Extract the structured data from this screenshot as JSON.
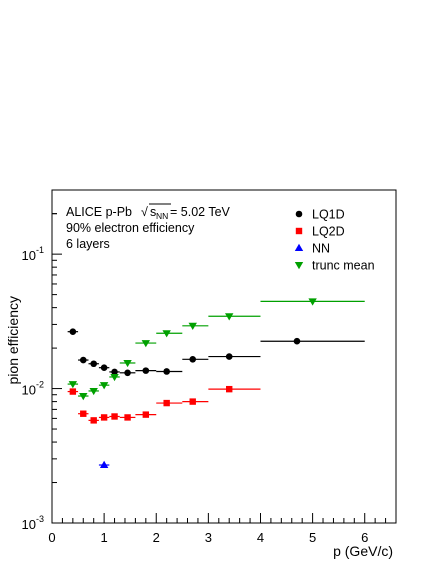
{
  "chart_data": {
    "type": "scatter",
    "title": "",
    "xlabel": "p (GeV/c)",
    "ylabel": "pion efficiency",
    "xlim": [
      0,
      6.6
    ],
    "ylim": [
      0.001,
      0.3
    ],
    "yscale": "log",
    "x_ticks": [
      "0",
      "1",
      "2",
      "3",
      "4",
      "5",
      "6"
    ],
    "y_ticks": [
      {
        "value": 0.001,
        "base": "10",
        "exp": "-3"
      },
      {
        "value": 0.01,
        "base": "10",
        "exp": "-2"
      },
      {
        "value": 0.1,
        "base": "10",
        "exp": "-1"
      }
    ],
    "annotations": {
      "line1_prefix": "ALICE p-Pb",
      "sqrt_symbol": "√",
      "sqrt_s": "s",
      "sqrt_sub": "NN",
      "line1_suffix": " = 5.02 TeV",
      "line2": "90% electron efficiency",
      "line3": "6 layers"
    },
    "legend": {
      "placement": "top-right"
    },
    "series": [
      {
        "name": "LQ1D",
        "color": "#000000",
        "marker": "circle",
        "points": [
          {
            "x": 0.4,
            "y": 0.0265,
            "xlo": 0.3,
            "xhi": 0.5
          },
          {
            "x": 0.6,
            "y": 0.0163,
            "xlo": 0.5,
            "xhi": 0.7
          },
          {
            "x": 0.8,
            "y": 0.0153,
            "xlo": 0.7,
            "xhi": 0.9
          },
          {
            "x": 1.0,
            "y": 0.0143,
            "xlo": 0.9,
            "xhi": 1.1
          },
          {
            "x": 1.2,
            "y": 0.0133,
            "xlo": 1.1,
            "xhi": 1.3
          },
          {
            "x": 1.45,
            "y": 0.0131,
            "xlo": 1.3,
            "xhi": 1.6
          },
          {
            "x": 1.8,
            "y": 0.0136,
            "xlo": 1.6,
            "xhi": 2.0
          },
          {
            "x": 2.2,
            "y": 0.0134,
            "xlo": 2.0,
            "xhi": 2.5
          },
          {
            "x": 2.7,
            "y": 0.0165,
            "xlo": 2.5,
            "xhi": 3.0
          },
          {
            "x": 3.4,
            "y": 0.0173,
            "xlo": 3.0,
            "xhi": 4.0
          },
          {
            "x": 4.7,
            "y": 0.0225,
            "xlo": 4.0,
            "xhi": 6.0
          }
        ]
      },
      {
        "name": "LQ2D",
        "color": "#ff0000",
        "marker": "square",
        "points": [
          {
            "x": 0.4,
            "y": 0.0095,
            "xlo": 0.3,
            "xhi": 0.5
          },
          {
            "x": 0.6,
            "y": 0.0065,
            "xlo": 0.5,
            "xhi": 0.7
          },
          {
            "x": 0.8,
            "y": 0.0058,
            "xlo": 0.7,
            "xhi": 0.9
          },
          {
            "x": 1.0,
            "y": 0.0061,
            "xlo": 0.9,
            "xhi": 1.1
          },
          {
            "x": 1.2,
            "y": 0.0062,
            "xlo": 1.1,
            "xhi": 1.3
          },
          {
            "x": 1.45,
            "y": 0.0061,
            "xlo": 1.3,
            "xhi": 1.6
          },
          {
            "x": 1.8,
            "y": 0.0064,
            "xlo": 1.6,
            "xhi": 2.0
          },
          {
            "x": 2.2,
            "y": 0.0078,
            "xlo": 2.0,
            "xhi": 2.5
          },
          {
            "x": 2.7,
            "y": 0.008,
            "xlo": 2.5,
            "xhi": 3.0
          },
          {
            "x": 3.4,
            "y": 0.0099,
            "xlo": 3.0,
            "xhi": 4.0
          }
        ]
      },
      {
        "name": "NN",
        "color": "#0000ff",
        "marker": "triangle-up",
        "points": [
          {
            "x": 1.0,
            "y": 0.0027,
            "xlo": 0.9,
            "xhi": 1.1
          }
        ]
      },
      {
        "name": "trunc mean",
        "color": "#00a000",
        "marker": "triangle-down",
        "points": [
          {
            "x": 0.4,
            "y": 0.0108,
            "xlo": 0.3,
            "xhi": 0.5
          },
          {
            "x": 0.6,
            "y": 0.0088,
            "xlo": 0.5,
            "xhi": 0.7
          },
          {
            "x": 0.8,
            "y": 0.0096,
            "xlo": 0.7,
            "xhi": 0.9
          },
          {
            "x": 1.0,
            "y": 0.0106,
            "xlo": 0.9,
            "xhi": 1.1
          },
          {
            "x": 1.2,
            "y": 0.0122,
            "xlo": 1.1,
            "xhi": 1.3
          },
          {
            "x": 1.45,
            "y": 0.0155,
            "xlo": 1.3,
            "xhi": 1.6
          },
          {
            "x": 1.8,
            "y": 0.0218,
            "xlo": 1.6,
            "xhi": 2.0
          },
          {
            "x": 2.2,
            "y": 0.0258,
            "xlo": 2.0,
            "xhi": 2.5
          },
          {
            "x": 2.7,
            "y": 0.0293,
            "xlo": 2.5,
            "xhi": 3.0
          },
          {
            "x": 3.4,
            "y": 0.0345,
            "xlo": 3.0,
            "xhi": 4.0
          },
          {
            "x": 5.0,
            "y": 0.0445,
            "xlo": 4.0,
            "xhi": 6.0
          }
        ]
      }
    ]
  }
}
